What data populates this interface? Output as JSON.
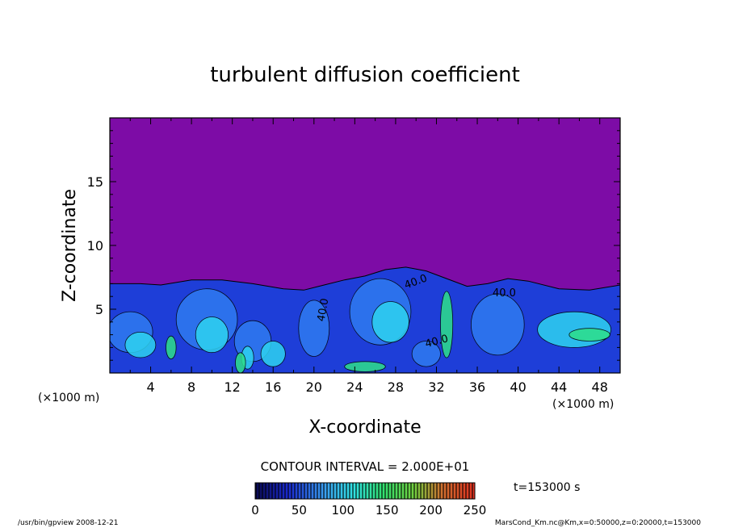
{
  "chart_data": {
    "type": "heatmap",
    "title": "turbulent diffusion coefficient",
    "xlabel": "X-coordinate",
    "ylabel": "Z-coordinate",
    "x_unit": "(×1000 m)",
    "y_unit": "(×1000 m)",
    "xlim": [
      0,
      50
    ],
    "ylim": [
      0,
      20
    ],
    "x_ticks": [
      4,
      8,
      12,
      16,
      20,
      24,
      28,
      32,
      36,
      40,
      44,
      48
    ],
    "y_ticks": [
      5,
      10,
      15
    ],
    "contour_interval_label": "CONTOUR INTERVAL = 2.000E+01",
    "contour_labels": [
      "40.0",
      "40.0",
      "40.0",
      "40.0"
    ],
    "colorbar": {
      "min": 0,
      "max": 250,
      "ticks": [
        0,
        50,
        100,
        150,
        200,
        250
      ]
    },
    "time_label": "t=153000 s",
    "footer_left": "/usr/bin/gpview   2008-12-21",
    "footer_right": "MarsCond_Km.nc@Km,x=0:50000,z=0:20000,t=153000",
    "layer_top_profile": [
      [
        0,
        7.0
      ],
      [
        3,
        7.0
      ],
      [
        5,
        6.9
      ],
      [
        8,
        7.3
      ],
      [
        11,
        7.3
      ],
      [
        14,
        7.0
      ],
      [
        17,
        6.6
      ],
      [
        19,
        6.5
      ],
      [
        21,
        6.9
      ],
      [
        23,
        7.3
      ],
      [
        25,
        7.6
      ],
      [
        27,
        8.1
      ],
      [
        29,
        8.3
      ],
      [
        31,
        8.0
      ],
      [
        33,
        7.4
      ],
      [
        35,
        6.8
      ],
      [
        37,
        7.0
      ],
      [
        39,
        7.4
      ],
      [
        41,
        7.2
      ],
      [
        44,
        6.6
      ],
      [
        47,
        6.5
      ],
      [
        50,
        6.9
      ]
    ],
    "colors": {
      "background_field": "#7d0ca6",
      "layer_base": "#1e3ed8",
      "layer_mid": "#2f7af0",
      "cyan": "#2ed3f0",
      "green": "#2ee08a"
    }
  }
}
